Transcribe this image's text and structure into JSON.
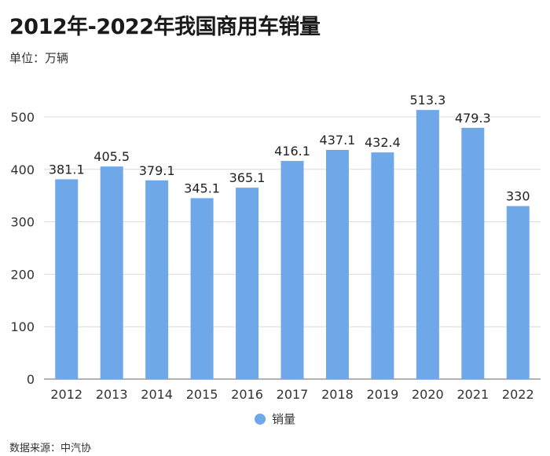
{
  "header": {
    "title": "2012年-2022年我国商用车销量",
    "unit": "单位：万辆"
  },
  "footer": {
    "source": "数据来源：中汽协"
  },
  "colors": {
    "bar": "#6fa8e8",
    "grid": "#d9d9d9",
    "axis": "#666666"
  },
  "chart_data": {
    "type": "bar",
    "title": "2012年-2022年我国商用车销量",
    "xlabel": "",
    "ylabel": "",
    "categories": [
      "2012",
      "2013",
      "2014",
      "2015",
      "2016",
      "2017",
      "2018",
      "2019",
      "2020",
      "2021",
      "2022"
    ],
    "series": [
      {
        "name": "销量",
        "values": [
          381.1,
          405.5,
          379.1,
          345.1,
          365.1,
          416.1,
          437.1,
          432.4,
          513.3,
          479.3,
          330
        ]
      }
    ],
    "value_labels": [
      "381.1",
      "405.5",
      "379.1",
      "345.1",
      "365.1",
      "416.1",
      "437.1",
      "432.4",
      "513.3",
      "479.3",
      "330"
    ],
    "ylim": [
      0,
      500
    ],
    "yticks": [
      0,
      100,
      200,
      300,
      400,
      500
    ],
    "grid": true,
    "legend": "bottom-center"
  }
}
